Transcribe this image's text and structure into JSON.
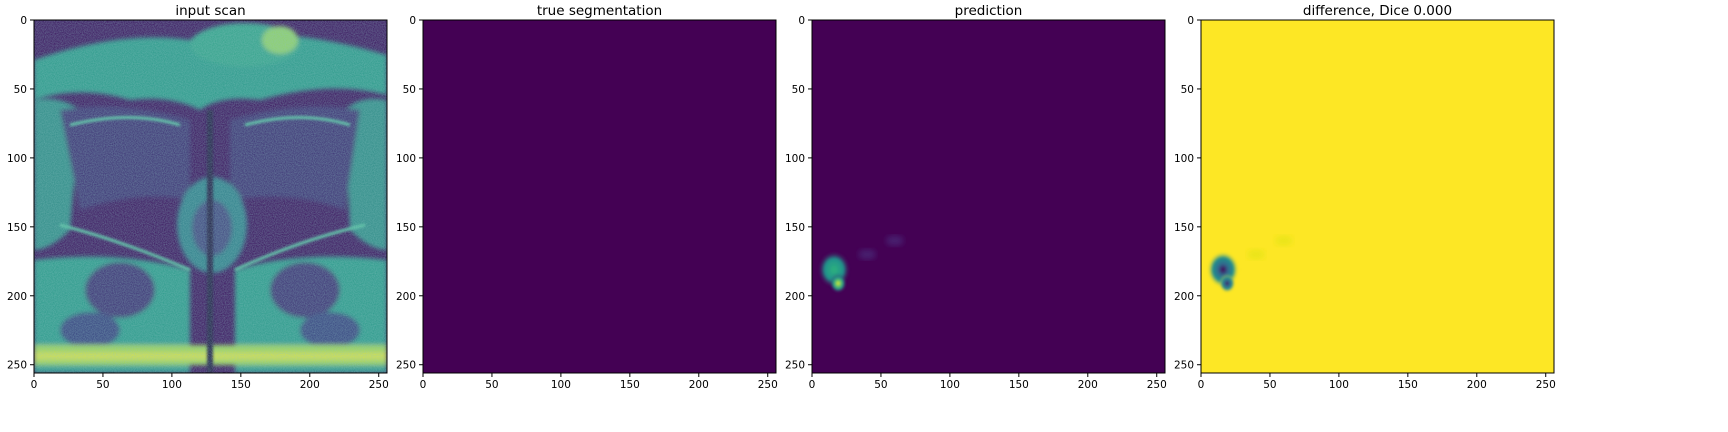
{
  "colormap": {
    "name": "viridis",
    "low": "#440154",
    "mid": "#21918c",
    "high": "#fde725"
  },
  "chart_data": [
    {
      "type": "heatmap",
      "title": "input scan",
      "xlim": [
        0,
        256
      ],
      "ylim": [
        256,
        0
      ],
      "xticks": [
        0,
        50,
        100,
        150,
        200,
        250
      ],
      "yticks": [
        0,
        50,
        100,
        150,
        200,
        250
      ],
      "content": "axial MRI intensity image"
    },
    {
      "type": "heatmap",
      "title": "true segmentation",
      "xlim": [
        0,
        256
      ],
      "ylim": [
        256,
        0
      ],
      "xticks": [
        0,
        50,
        100,
        150,
        200,
        250
      ],
      "yticks": [
        0,
        50,
        100,
        150,
        200,
        250
      ],
      "content": "uniform background, no positive region"
    },
    {
      "type": "heatmap",
      "title": "prediction",
      "xlim": [
        0,
        256
      ],
      "ylim": [
        256,
        0
      ],
      "xticks": [
        0,
        50,
        100,
        150,
        200,
        250
      ],
      "yticks": [
        0,
        50,
        100,
        150,
        200,
        250
      ],
      "hotspots": [
        {
          "x": 16,
          "y": 181,
          "value": 0.55
        },
        {
          "x": 19,
          "y": 191,
          "value": 1.0
        },
        {
          "x": 60,
          "y": 160,
          "value": 0.08
        },
        {
          "x": 40,
          "y": 170,
          "value": 0.07
        }
      ]
    },
    {
      "type": "heatmap",
      "title": "difference, Dice 0.000",
      "xlim": [
        0,
        256
      ],
      "ylim": [
        256,
        0
      ],
      "xticks": [
        0,
        50,
        100,
        150,
        200,
        250
      ],
      "yticks": [
        0,
        50,
        100,
        150,
        200,
        250
      ],
      "hotspots": [
        {
          "x": 16,
          "y": 181,
          "value": 0.5
        },
        {
          "x": 19,
          "y": 191,
          "value": 0.0
        },
        {
          "x": 60,
          "y": 160,
          "value": 0.92
        },
        {
          "x": 40,
          "y": 170,
          "value": 0.93
        }
      ]
    }
  ]
}
